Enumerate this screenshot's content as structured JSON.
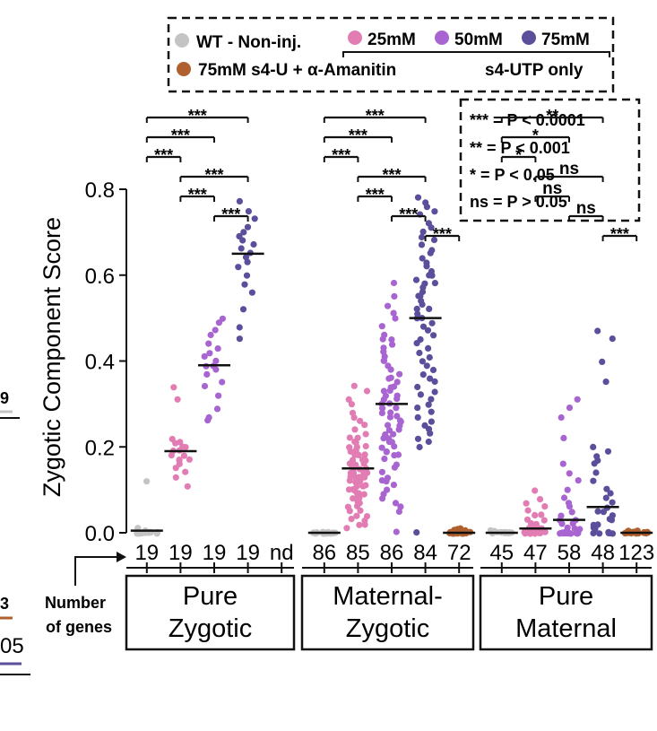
{
  "colors": {
    "wt": "#c4c4c4",
    "c25": "#e27db4",
    "c50": "#a864d0",
    "c75": "#5b4f9c",
    "aman": "#b0602e",
    "ink": "#111111"
  },
  "legend": {
    "wt": "WT - Non-inj.",
    "c25": "25mM",
    "c50": "50mM",
    "c75": "75mM",
    "aman": "75mM s4-U + α-Amanitin",
    "s4utp": "s4-UTP only"
  },
  "significance_key": [
    "*** = P < 0.0001",
    "** = P < 0.001",
    "* = P < 0.05",
    "ns = P > 0.05"
  ],
  "left_edge_fragments": [
    "9",
    "3",
    "05"
  ],
  "number_of_genes_label": [
    "Number",
    "of genes"
  ],
  "chart_data": {
    "type": "scatter",
    "ylabel": "Zygotic Component Score",
    "ylim": [
      0,
      0.8
    ],
    "yticks": [
      "0.0",
      "0.2",
      "0.4",
      "0.6",
      "0.8"
    ],
    "groups": [
      {
        "name": "Pure Zygotic",
        "label_lines": [
          "Pure",
          "Zygotic"
        ],
        "series": [
          {
            "key": "wt",
            "n": "19",
            "median": 0.005,
            "values": [
              0.12,
              0.01,
              0.005,
              0,
              0,
              0,
              0,
              0,
              0,
              0,
              0,
              0,
              0,
              0,
              0,
              0,
              0,
              0,
              0
            ]
          },
          {
            "key": "c25",
            "n": "19",
            "median": 0.19,
            "values": [
              0.34,
              0.31,
              0.22,
              0.21,
              0.21,
              0.2,
              0.2,
              0.19,
              0.19,
              0.18,
              0.18,
              0.17,
              0.17,
              0.17,
              0.16,
              0.15,
              0.14,
              0.13,
              0.11
            ]
          },
          {
            "key": "c50",
            "n": "19",
            "median": 0.39,
            "values": [
              0.5,
              0.49,
              0.47,
              0.46,
              0.44,
              0.43,
              0.42,
              0.41,
              0.4,
              0.39,
              0.39,
              0.38,
              0.37,
              0.35,
              0.34,
              0.32,
              0.29,
              0.27,
              0.26
            ]
          },
          {
            "key": "c75",
            "n": "19",
            "median": 0.65,
            "values": [
              0.77,
              0.75,
              0.73,
              0.71,
              0.7,
              0.69,
              0.68,
              0.67,
              0.66,
              0.65,
              0.64,
              0.63,
              0.62,
              0.6,
              0.58,
              0.56,
              0.52,
              0.48,
              0.45
            ]
          },
          {
            "key": "aman",
            "n": "nd",
            "median": null,
            "values": []
          }
        ],
        "comparisons": [
          {
            "from": 0,
            "to": 3,
            "label": "***"
          },
          {
            "from": 0,
            "to": 2,
            "label": "***"
          },
          {
            "from": 0,
            "to": 1,
            "label": "***"
          },
          {
            "from": 1,
            "to": 3,
            "label": "***"
          },
          {
            "from": 1,
            "to": 2,
            "label": "***"
          },
          {
            "from": 2,
            "to": 3,
            "label": "***"
          }
        ]
      },
      {
        "name": "Maternal-Zygotic",
        "label_lines": [
          "Maternal-",
          "Zygotic"
        ],
        "series": [
          {
            "key": "wt",
            "n": "86",
            "median": 0.0,
            "values": [
              0,
              0,
              0,
              0,
              0,
              0,
              0,
              0,
              0,
              0,
              0,
              0,
              0,
              0,
              0,
              0,
              0,
              0,
              0,
              0,
              0,
              0,
              0,
              0,
              0
            ]
          },
          {
            "key": "c25",
            "n": "85",
            "median": 0.15,
            "values": [
              0.34,
              0.33,
              0.31,
              0.3,
              0.28,
              0.27,
              0.26,
              0.25,
              0.24,
              0.23,
              0.22,
              0.22,
              0.21,
              0.21,
              0.2,
              0.2,
              0.2,
              0.19,
              0.19,
              0.19,
              0.18,
              0.18,
              0.18,
              0.17,
              0.17,
              0.17,
              0.16,
              0.16,
              0.16,
              0.16,
              0.15,
              0.15,
              0.15,
              0.15,
              0.14,
              0.14,
              0.14,
              0.14,
              0.13,
              0.13,
              0.13,
              0.13,
              0.12,
              0.12,
              0.12,
              0.12,
              0.11,
              0.11,
              0.11,
              0.11,
              0.1,
              0.1,
              0.1,
              0.09,
              0.09,
              0.09,
              0.08,
              0.08,
              0.08,
              0.07,
              0.07,
              0.06,
              0.06,
              0.05,
              0.05,
              0.04,
              0.04,
              0.03,
              0.03,
              0.02,
              0.02,
              0.01
            ]
          },
          {
            "key": "c50",
            "n": "86",
            "median": 0.3,
            "values": [
              0.58,
              0.55,
              0.53,
              0.51,
              0.5,
              0.48,
              0.46,
              0.45,
              0.45,
              0.44,
              0.43,
              0.42,
              0.41,
              0.4,
              0.4,
              0.39,
              0.38,
              0.37,
              0.36,
              0.36,
              0.35,
              0.34,
              0.34,
              0.33,
              0.33,
              0.32,
              0.32,
              0.31,
              0.31,
              0.3,
              0.3,
              0.29,
              0.29,
              0.28,
              0.28,
              0.27,
              0.27,
              0.26,
              0.26,
              0.25,
              0.25,
              0.24,
              0.24,
              0.23,
              0.23,
              0.22,
              0.22,
              0.21,
              0.21,
              0.2,
              0.2,
              0.19,
              0.19,
              0.18,
              0.18,
              0.17,
              0.16,
              0.15,
              0.14,
              0.13,
              0.12,
              0.12,
              0.11,
              0.1,
              0.09,
              0.08,
              0.07,
              0.06,
              0.05,
              0.0
            ]
          },
          {
            "key": "c75",
            "n": "84",
            "median": 0.5,
            "values": [
              0.78,
              0.77,
              0.76,
              0.75,
              0.74,
              0.72,
              0.71,
              0.7,
              0.69,
              0.68,
              0.67,
              0.66,
              0.65,
              0.64,
              0.63,
              0.62,
              0.61,
              0.6,
              0.6,
              0.59,
              0.58,
              0.58,
              0.57,
              0.56,
              0.55,
              0.55,
              0.54,
              0.53,
              0.52,
              0.52,
              0.51,
              0.5,
              0.5,
              0.49,
              0.48,
              0.47,
              0.46,
              0.45,
              0.44,
              0.43,
              0.42,
              0.41,
              0.4,
              0.39,
              0.38,
              0.37,
              0.36,
              0.35,
              0.34,
              0.33,
              0.32,
              0.31,
              0.3,
              0.29,
              0.28,
              0.27,
              0.26,
              0.25,
              0.24,
              0.23,
              0.22,
              0.21,
              0.2,
              0.0
            ]
          },
          {
            "key": "aman",
            "n": "72",
            "median": 0.0,
            "values": [
              0.01,
              0.01,
              0.005,
              0.005,
              0,
              0,
              0,
              0,
              0,
              0,
              0,
              0,
              0,
              0,
              0,
              0,
              0,
              0,
              0,
              0,
              0,
              0,
              0,
              0
            ]
          }
        ],
        "comparisons": [
          {
            "from": 0,
            "to": 3,
            "label": "***"
          },
          {
            "from": 0,
            "to": 2,
            "label": "***"
          },
          {
            "from": 0,
            "to": 1,
            "label": "***"
          },
          {
            "from": 1,
            "to": 3,
            "label": "***"
          },
          {
            "from": 1,
            "to": 2,
            "label": "***"
          },
          {
            "from": 2,
            "to": 3,
            "label": "***"
          },
          {
            "from": 3,
            "to": 4,
            "label": "***"
          }
        ]
      },
      {
        "name": "Pure Maternal",
        "label_lines": [
          "Pure",
          "Maternal"
        ],
        "series": [
          {
            "key": "wt",
            "n": "45",
            "median": 0.0,
            "values": [
              0.005,
              0.005,
              0,
              0,
              0,
              0,
              0,
              0,
              0,
              0,
              0,
              0,
              0,
              0,
              0,
              0,
              0,
              0,
              0,
              0
            ]
          },
          {
            "key": "c25",
            "n": "47",
            "median": 0.01,
            "values": [
              0.1,
              0.08,
              0.07,
              0.06,
              0.05,
              0.04,
              0.04,
              0.03,
              0.03,
              0.02,
              0.02,
              0.02,
              0.01,
              0.01,
              0.01,
              0.01,
              0.01,
              0,
              0,
              0,
              0,
              0,
              0,
              0,
              0,
              0,
              0,
              0
            ]
          },
          {
            "key": "c50",
            "n": "58",
            "median": 0.03,
            "values": [
              0.31,
              0.29,
              0.27,
              0.22,
              0.16,
              0.14,
              0.12,
              0.1,
              0.08,
              0.07,
              0.06,
              0.05,
              0.04,
              0.03,
              0.03,
              0.02,
              0.02,
              0.01,
              0.01,
              0.01,
              0,
              0,
              0,
              0,
              0,
              0,
              0,
              0,
              0,
              0,
              0,
              0,
              0
            ]
          },
          {
            "key": "c75",
            "n": "48",
            "median": 0.06,
            "values": [
              0.47,
              0.45,
              0.4,
              0.35,
              0.2,
              0.19,
              0.18,
              0.17,
              0.16,
              0.14,
              0.12,
              0.1,
              0.09,
              0.08,
              0.07,
              0.06,
              0.05,
              0.05,
              0.04,
              0.03,
              0.03,
              0.02,
              0.02,
              0.01,
              0.01,
              0,
              0,
              0,
              0,
              0,
              0,
              0
            ]
          },
          {
            "key": "aman",
            "n": "123",
            "median": 0.0,
            "values": [
              0.005,
              0.005,
              0,
              0,
              0,
              0,
              0,
              0,
              0,
              0,
              0,
              0,
              0,
              0,
              0,
              0,
              0,
              0,
              0,
              0,
              0,
              0,
              0,
              0
            ]
          }
        ],
        "comparisons": [
          {
            "from": 0,
            "to": 3,
            "label": "**"
          },
          {
            "from": 0,
            "to": 2,
            "label": "*"
          },
          {
            "from": 0,
            "to": 1,
            "label": "*"
          },
          {
            "from": 1,
            "to": 3,
            "label": "ns"
          },
          {
            "from": 1,
            "to": 2,
            "label": "ns"
          },
          {
            "from": 2,
            "to": 3,
            "label": "ns"
          },
          {
            "from": 3,
            "to": 4,
            "label": "***"
          }
        ]
      }
    ]
  }
}
